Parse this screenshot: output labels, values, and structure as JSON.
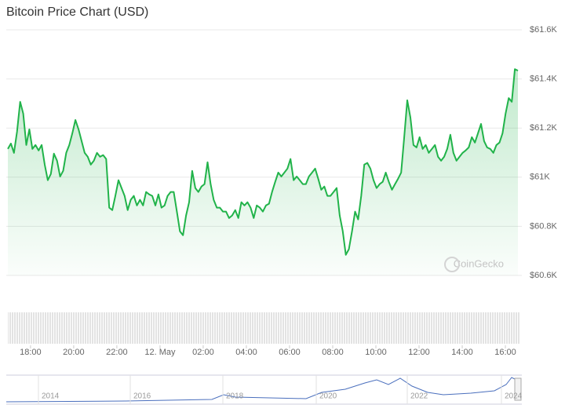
{
  "chart_data": {
    "type": "area",
    "title": "Bitcoin Price Chart (USD)",
    "watermark": "CoinGecko",
    "color": "#21b34a",
    "grid": true,
    "ylim": [
      60600,
      61600
    ],
    "yticks": [
      {
        "value": 60600,
        "label": "$60.6K"
      },
      {
        "value": 60800,
        "label": "$60.8K"
      },
      {
        "value": 61000,
        "label": "$61K"
      },
      {
        "value": 61200,
        "label": "$61.2K"
      },
      {
        "value": 61400,
        "label": "$61.4K"
      },
      {
        "value": 61600,
        "label": "$61.6K"
      }
    ],
    "xlim": [
      -7.05,
      16.58
    ],
    "xticks": [
      {
        "value": -6,
        "label": "18:00"
      },
      {
        "value": -4,
        "label": "20:00"
      },
      {
        "value": -2,
        "label": "22:00"
      },
      {
        "value": 0,
        "label": "12. May"
      },
      {
        "value": 2,
        "label": "02:00"
      },
      {
        "value": 4,
        "label": "04:00"
      },
      {
        "value": 6,
        "label": "06:00"
      },
      {
        "value": 8,
        "label": "08:00"
      },
      {
        "value": 10,
        "label": "10:00"
      },
      {
        "value": 12,
        "label": "12:00"
      },
      {
        "value": 14,
        "label": "14:00"
      },
      {
        "value": 16,
        "label": "16:00"
      }
    ],
    "values": [
      61115,
      61137,
      61099,
      61185,
      61307,
      61259,
      61131,
      61195,
      61115,
      61131,
      61109,
      61131,
      61051,
      60988,
      61013,
      61096,
      61067,
      61003,
      61026,
      61099,
      61131,
      61179,
      61233,
      61195,
      61147,
      61099,
      61083,
      61051,
      61067,
      61099,
      61083,
      61090,
      61074,
      60876,
      60866,
      60924,
      60988,
      60956,
      60924,
      60866,
      60908,
      60924,
      60885,
      60908,
      60885,
      60940,
      60930,
      60924,
      60885,
      60930,
      60876,
      60885,
      60924,
      60940,
      60940,
      60860,
      60780,
      60764,
      60844,
      60898,
      61026,
      60956,
      60940,
      60962,
      60972,
      61061,
      60972,
      60908,
      60876,
      60876,
      60860,
      60860,
      60834,
      60844,
      60866,
      60834,
      60898,
      60885,
      60898,
      60876,
      60834,
      60885,
      60876,
      60860,
      60885,
      60892,
      60940,
      60981,
      61019,
      61003,
      61019,
      61035,
      61074,
      60988,
      61003,
      60988,
      60972,
      60972,
      61003,
      61019,
      61035,
      60994,
      60949,
      60962,
      60924,
      60924,
      60940,
      60956,
      60844,
      60780,
      60684,
      60707,
      60780,
      60860,
      60828,
      60924,
      61051,
      61058,
      61035,
      60988,
      60956,
      60972,
      60981,
      61019,
      60981,
      60949,
      60972,
      60994,
      61019,
      61163,
      61313,
      61243,
      61131,
      61121,
      61163,
      61115,
      61131,
      61099,
      61115,
      61131,
      61083,
      61067,
      61083,
      61115,
      61173,
      61099,
      61067,
      61083,
      61099,
      61109,
      61121,
      61163,
      61141,
      61179,
      61217,
      61147,
      61121,
      61115,
      61099,
      61131,
      61141,
      61179,
      61259,
      61322,
      61307,
      61440,
      61434
    ],
    "navigator_labels": [
      "2014",
      "2016",
      "2018",
      "2020",
      "2022",
      "2024"
    ]
  }
}
